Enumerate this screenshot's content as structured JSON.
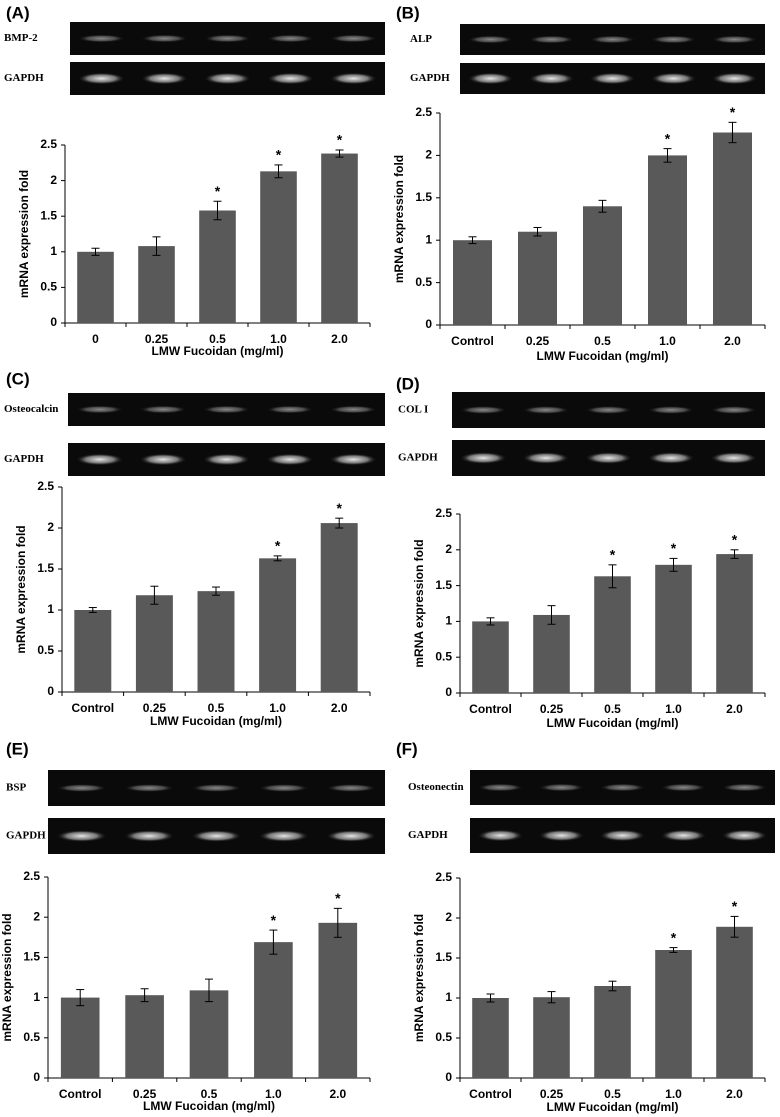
{
  "chart_data": [
    {
      "type": "bar",
      "panel": "(A)",
      "blots": [
        "BMP-2",
        "GAPDH"
      ],
      "categories": [
        "0",
        "0.25",
        "0.5",
        "1.0",
        "2.0"
      ],
      "values": [
        1.0,
        1.08,
        1.58,
        2.13,
        2.38
      ],
      "errors": [
        0.05,
        0.13,
        0.13,
        0.09,
        0.05
      ],
      "marks": [
        null,
        null,
        "*",
        "*",
        "*"
      ],
      "xlabel": "LMW Fucoidan (mg/ml)",
      "ylabel": "mRNA expression fold",
      "ylim": [
        0,
        2.5
      ],
      "yticks": [
        0,
        0.5,
        1,
        1.5,
        2,
        2.5
      ],
      "color": "#595959"
    },
    {
      "type": "bar",
      "panel": "(B)",
      "blots": [
        "ALP",
        "GAPDH"
      ],
      "categories": [
        "Control",
        "0.25",
        "0.5",
        "1.0",
        "2.0"
      ],
      "values": [
        1.0,
        1.1,
        1.4,
        2.0,
        2.27
      ],
      "errors": [
        0.04,
        0.05,
        0.07,
        0.08,
        0.12
      ],
      "marks": [
        null,
        null,
        null,
        "*",
        "*"
      ],
      "xlabel": "LMW Fucoidan (mg/ml)",
      "ylabel": "mRNA expression fold",
      "ylim": [
        0,
        2.5
      ],
      "yticks": [
        0,
        0.5,
        1,
        1.5,
        2,
        2.5
      ],
      "color": "#595959"
    },
    {
      "type": "bar",
      "panel": "(C)",
      "blots": [
        "Osteocalcin",
        "GAPDH"
      ],
      "categories": [
        "Control",
        "0.25",
        "0.5",
        "1.0",
        "2.0"
      ],
      "values": [
        1.0,
        1.18,
        1.23,
        1.63,
        2.06
      ],
      "errors": [
        0.03,
        0.11,
        0.05,
        0.03,
        0.06
      ],
      "marks": [
        null,
        null,
        null,
        "*",
        "*"
      ],
      "xlabel": "LMW Fucoidan (mg/ml)",
      "ylabel": "mRNA expression fold",
      "ylim": [
        0,
        2.5
      ],
      "yticks": [
        0,
        0.5,
        1,
        1.5,
        2,
        2.5
      ],
      "color": "#595959"
    },
    {
      "type": "bar",
      "panel": "(D)",
      "blots": [
        "COL I",
        "GAPDH"
      ],
      "categories": [
        "Control",
        "0.25",
        "0.5",
        "1.0",
        "2.0"
      ],
      "values": [
        1.0,
        1.09,
        1.63,
        1.79,
        1.94
      ],
      "errors": [
        0.05,
        0.13,
        0.16,
        0.09,
        0.06
      ],
      "marks": [
        null,
        null,
        "*",
        "*",
        "*"
      ],
      "xlabel": "LMW Fucoidan (mg/ml)",
      "ylabel": "mRNA expression fold",
      "ylim": [
        0,
        2.5
      ],
      "yticks": [
        0,
        0.5,
        1,
        1.5,
        2,
        2.5
      ],
      "color": "#595959"
    },
    {
      "type": "bar",
      "panel": "(E)",
      "blots": [
        "BSP",
        "GAPDH"
      ],
      "categories": [
        "Control",
        "0.25",
        "0.5",
        "1.0",
        "2.0"
      ],
      "values": [
        1.0,
        1.03,
        1.09,
        1.69,
        1.93
      ],
      "errors": [
        0.1,
        0.08,
        0.14,
        0.15,
        0.18
      ],
      "marks": [
        null,
        null,
        null,
        "*",
        "*"
      ],
      "xlabel": "LMW Fucoidan (mg/ml)",
      "ylabel": "mRNA expression fold",
      "ylim": [
        0,
        2.5
      ],
      "yticks": [
        0,
        0.5,
        1,
        1.5,
        2,
        2.5
      ],
      "color": "#595959"
    },
    {
      "type": "bar",
      "panel": "(F)",
      "blots": [
        "Osteonectin",
        "GAPDH"
      ],
      "categories": [
        "Control",
        "0.25",
        "0.5",
        "1.0",
        "2.0"
      ],
      "values": [
        1.0,
        1.01,
        1.15,
        1.6,
        1.89
      ],
      "errors": [
        0.05,
        0.07,
        0.06,
        0.03,
        0.13
      ],
      "marks": [
        null,
        null,
        null,
        "*",
        "*"
      ],
      "xlabel": "LMW Fucoidan (mg/ml)",
      "ylabel": "mRNA expression fold",
      "ylim": [
        0,
        2.5
      ],
      "yticks": [
        0,
        0.5,
        1,
        1.5,
        2,
        2.5
      ],
      "color": "#595959"
    }
  ]
}
